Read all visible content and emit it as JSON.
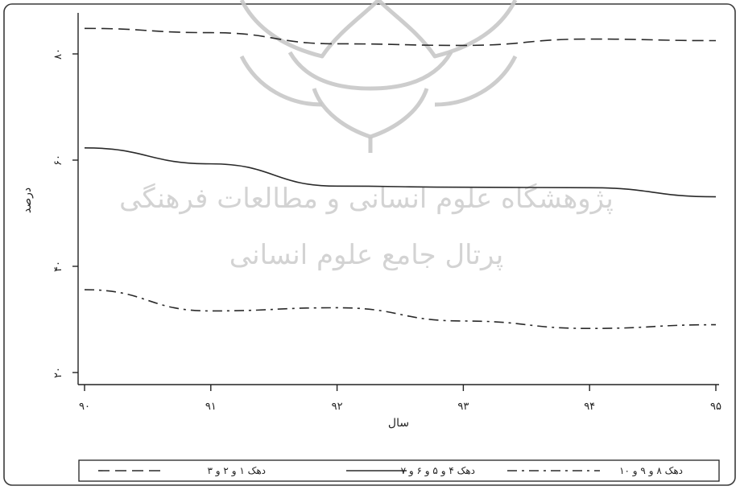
{
  "chart_data": {
    "type": "line",
    "x": [
      90,
      91,
      92,
      93,
      94,
      95
    ],
    "x_tick_labels": [
      "۹۰",
      "۹۱",
      "۹۲",
      "۹۳",
      "۹۴",
      "۹۵"
    ],
    "xlabel": "سال",
    "ylabel": "درصد",
    "ylim": [
      20,
      80
    ],
    "y_ticks": [
      20,
      40,
      60,
      80
    ],
    "y_tick_labels": [
      "۲۰",
      "۴۰",
      "۶۰",
      "۸۰"
    ],
    "grid": false,
    "legend_position": "bottom",
    "series": [
      {
        "name": "دهک ۱ و ۲ و ۳",
        "dash": "dashed",
        "values": [
          84.8,
          84.0,
          81.9,
          81.6,
          82.8,
          82.5
        ]
      },
      {
        "name": "دهک ۴ و ۵ و ۶ و ۷",
        "dash": "solid",
        "values": [
          62.3,
          59.3,
          55.1,
          54.9,
          54.8,
          53.1
        ]
      },
      {
        "name": "دهک ۸ و ۹ و ۱۰",
        "dash": "dash-dot",
        "values": [
          35.6,
          31.6,
          32.2,
          29.7,
          28.3,
          29.0
        ]
      }
    ]
  },
  "watermark": {
    "line1": "پژوهشگاه علوم انسانی و مطالعات فرهنگی",
    "line2": "پرتال جامع علوم انسانی",
    "color": "#d0d0d0"
  }
}
